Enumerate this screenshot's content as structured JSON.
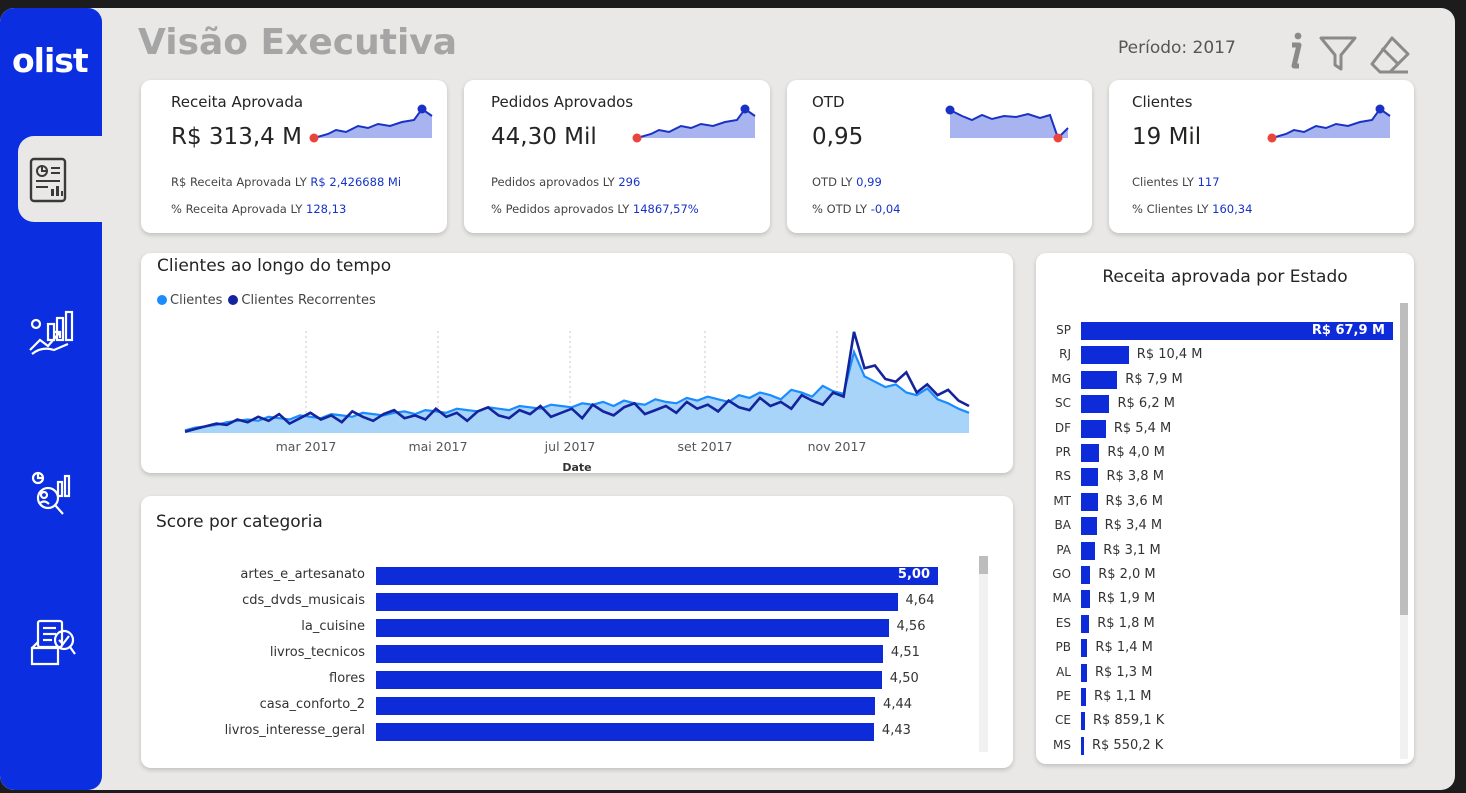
{
  "app": {
    "logo": "olist",
    "title": "Visão Executiva",
    "periodo": "Período: 2017"
  },
  "sidebar": {
    "items": [
      {
        "name": "report-icon"
      },
      {
        "name": "growth-icon"
      },
      {
        "name": "analytics-search-icon"
      },
      {
        "name": "product-checklist-icon"
      }
    ]
  },
  "toolbar": {
    "icons": [
      "info-icon",
      "filter-icon",
      "eraser-icon"
    ]
  },
  "kpis": [
    {
      "title": "Receita Aprovada",
      "value": "R$ 313,4 M",
      "ly1_label": "R$ Receita Aprovada LY",
      "ly1_value": "R$ 2,426688 Mi",
      "ly2_label": "% Receita Aprovada LY",
      "ly2_value": "128,13"
    },
    {
      "title": "Pedidos Aprovados",
      "value": "44,30 Mil",
      "ly1_label": "Pedidos aprovados LY",
      "ly1_value": "296",
      "ly2_label": "% Pedidos aprovados LY",
      "ly2_value": "14867,57%"
    },
    {
      "title": "OTD",
      "value": "0,95",
      "ly1_label": "OTD LY",
      "ly1_value": "0,99",
      "ly2_label": "% OTD LY",
      "ly2_value": "-0,04"
    },
    {
      "title": "Clientes",
      "value": "19 Mil",
      "ly1_label": "Clientes LY",
      "ly1_value": "117",
      "ly2_label": "% Clientes LY",
      "ly2_value": "160,34"
    }
  ],
  "clientes_chart": {
    "title": "Clientes ao longo do tempo",
    "legend": [
      "Clientes",
      "Clientes Recorrentes"
    ],
    "ticks": [
      "mar 2017",
      "mai 2017",
      "jul 2017",
      "set 2017",
      "nov 2017"
    ],
    "xlabel": "Date"
  },
  "estado_chart": {
    "title": "Receita aprovada por Estado"
  },
  "score_chart": {
    "title": "Score por categoria"
  },
  "colors": {
    "accent": "#0a2ee0",
    "bar": "#0d2bd8",
    "clientes": "#1a8cff",
    "recorrentes": "#13249c",
    "marker_high": "#1a32c4",
    "marker_low": "#e8463c"
  },
  "chart_data": [
    {
      "type": "line",
      "title": "Clientes ao longo do tempo",
      "xlabel": "Date",
      "x_ticks": [
        "mar 2017",
        "mai 2017",
        "jul 2017",
        "set 2017",
        "nov 2017"
      ],
      "series": [
        {
          "name": "Clientes",
          "values": [
            2,
            4,
            5,
            6,
            8,
            9,
            10,
            9,
            12,
            11,
            10,
            13,
            12,
            11,
            14,
            13,
            12,
            15,
            14,
            13,
            15,
            16,
            14,
            17,
            16,
            15,
            18,
            17,
            16,
            19,
            18,
            17,
            20,
            19,
            18,
            21,
            20,
            19,
            22,
            21,
            23,
            20,
            24,
            22,
            21,
            25,
            23,
            22,
            26,
            24,
            27,
            25,
            23,
            28,
            26,
            30,
            28,
            25,
            32,
            30,
            27,
            35,
            31,
            29,
            60,
            42,
            38,
            34,
            36,
            30,
            28,
            33,
            25,
            22,
            18,
            15
          ]
        },
        {
          "name": "Clientes Recorrentes",
          "values": [
            1,
            3,
            5,
            7,
            6,
            10,
            8,
            12,
            9,
            14,
            7,
            11,
            15,
            10,
            13,
            8,
            16,
            12,
            9,
            14,
            17,
            11,
            13,
            10,
            18,
            12,
            15,
            9,
            16,
            19,
            13,
            11,
            17,
            14,
            20,
            12,
            15,
            18,
            11,
            21,
            16,
            13,
            19,
            22,
            14,
            17,
            20,
            15,
            23,
            18,
            21,
            16,
            24,
            19,
            17,
            26,
            20,
            23,
            18,
            28,
            24,
            21,
            30,
            27,
            75,
            48,
            50,
            40,
            38,
            45,
            30,
            36,
            28,
            32,
            24,
            20
          ]
        }
      ]
    },
    {
      "type": "bar",
      "title": "Receita aprovada por Estado",
      "categories": [
        "SP",
        "RJ",
        "MG",
        "SC",
        "DF",
        "PR",
        "RS",
        "MT",
        "BA",
        "PA",
        "GO",
        "MA",
        "ES",
        "PB",
        "AL",
        "PE",
        "CE",
        "MS"
      ],
      "values": [
        67.9,
        10.4,
        7.9,
        6.2,
        5.4,
        4.0,
        3.8,
        3.6,
        3.4,
        3.1,
        2.0,
        1.9,
        1.8,
        1.4,
        1.3,
        1.1,
        0.8591,
        0.5502
      ],
      "labels": [
        "R$ 67,9 M",
        "R$ 10,4 M",
        "R$ 7,9 M",
        "R$ 6,2 M",
        "R$ 5,4 M",
        "R$ 4,0 M",
        "R$ 3,8 M",
        "R$ 3,6 M",
        "R$ 3,4 M",
        "R$ 3,1 M",
        "R$ 2,0 M",
        "R$ 1,9 M",
        "R$ 1,8 M",
        "R$ 1,4 M",
        "R$ 1,3 M",
        "R$ 1,1 M",
        "R$ 859,1 K",
        "R$ 550,2 K"
      ]
    },
    {
      "type": "bar",
      "title": "Score por categoria",
      "categories": [
        "artes_e_artesanato",
        "cds_dvds_musicais",
        "la_cuisine",
        "livros_tecnicos",
        "flores",
        "casa_conforto_2",
        "livros_interesse_geral"
      ],
      "values": [
        5.0,
        4.64,
        4.56,
        4.51,
        4.5,
        4.44,
        4.43
      ],
      "labels": [
        "5,00",
        "4,64",
        "4,56",
        "4,51",
        "4,50",
        "4,44",
        "4,43"
      ]
    }
  ]
}
